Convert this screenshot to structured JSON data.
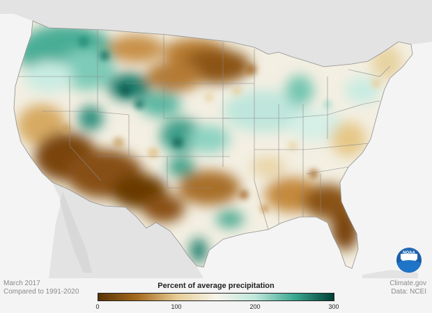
{
  "map": {
    "period": "March 2017",
    "baseline": "Compared to 1991-2020",
    "credit": "Climate.gov",
    "data_source": "Data: NCEI",
    "logo_text": "NOAA",
    "colors": {
      "land_outside": "#e3e3e3",
      "water": "#f2f2f2",
      "state_border": "#7a7a7a",
      "dry_strong": "#5a3204",
      "dry": "#a66b1e",
      "dry_light": "#e6cc95",
      "near_normal": "#f6f3ea",
      "wet_light": "#bfe7dc",
      "wet": "#3aa88f",
      "wet_strong": "#013f37"
    }
  },
  "legend": {
    "title": "Percent of average precipitation",
    "ticks": [
      "0",
      "100",
      "200",
      "300"
    ]
  }
}
